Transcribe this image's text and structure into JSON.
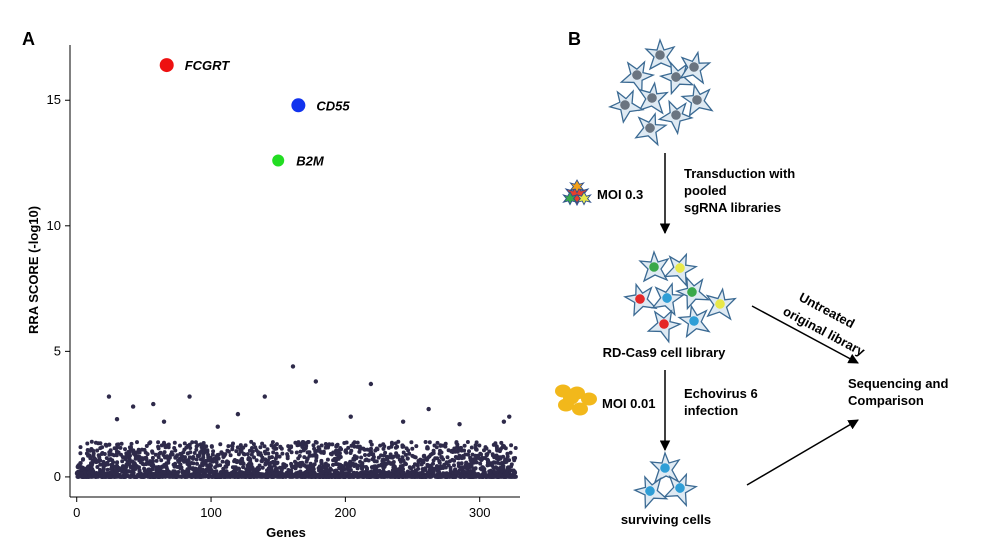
{
  "panel_a": {
    "letter": "A",
    "chart_data": {
      "type": "scatter",
      "xlabel": "Genes",
      "ylabel": "RRA SCORE (-log10)",
      "xlim": [
        -5,
        330
      ],
      "ylim": [
        -0.8,
        17.2
      ],
      "x_ticks": [
        "0",
        "100",
        "200",
        "300"
      ],
      "y_ticks": [
        "0",
        "5",
        "10",
        "15"
      ],
      "x_tick_values": [
        0,
        100,
        200,
        300
      ],
      "y_tick_values": [
        0,
        5,
        10,
        15
      ],
      "grid": false,
      "highlighted": [
        {
          "label": "FCGRT",
          "x": 67,
          "y": 16.4,
          "color": "#ee1111"
        },
        {
          "label": "CD55",
          "x": 165,
          "y": 14.8,
          "color": "#1133ee"
        },
        {
          "label": "B2M",
          "x": 150,
          "y": 12.6,
          "color": "#22dd22"
        }
      ],
      "outliers": [
        {
          "x": 24,
          "y": 3.2
        },
        {
          "x": 42,
          "y": 2.8
        },
        {
          "x": 57,
          "y": 2.9
        },
        {
          "x": 84,
          "y": 3.2
        },
        {
          "x": 120,
          "y": 2.5
        },
        {
          "x": 140,
          "y": 3.2
        },
        {
          "x": 161,
          "y": 4.4
        },
        {
          "x": 178,
          "y": 3.8
        },
        {
          "x": 204,
          "y": 2.4
        },
        {
          "x": 219,
          "y": 3.7
        },
        {
          "x": 262,
          "y": 2.7
        },
        {
          "x": 318,
          "y": 2.2
        },
        {
          "x": 322,
          "y": 2.4
        },
        {
          "x": 65,
          "y": 2.2
        },
        {
          "x": 243,
          "y": 2.2
        },
        {
          "x": 105,
          "y": 2.0
        },
        {
          "x": 285,
          "y": 2.1
        },
        {
          "x": 30,
          "y": 2.3
        }
      ],
      "background_points": {
        "x_range": [
          0,
          327
        ],
        "count": 2600,
        "typical_max": 1.4,
        "color": "#2e2a4a"
      }
    }
  },
  "panel_b": {
    "letter": "B",
    "step1_label": [
      "Transduction with",
      "pooled",
      "sgRNA libraries"
    ],
    "moi1": "MOI 0.3",
    "library_label": "RD-Cas9 cell library",
    "untreated_label": [
      "Untreated",
      "original library"
    ],
    "sequencing_label": [
      "Sequencing and",
      "Comparison"
    ],
    "moi2": "MOI 0.01",
    "step2_label": [
      "Echovirus 6",
      "infection"
    ],
    "surviving_label": "surviving cells",
    "colors": {
      "cell_fill": "#dfeaf3",
      "cell_stroke": "#3b6a93",
      "nucleus_gray": "#6a7480",
      "nucleus_green": "#3aa84a",
      "nucleus_yellow": "#e8e84a",
      "nucleus_red": "#e52828",
      "nucleus_blue": "#2f9ed6",
      "virus_orange": "#f2b81b"
    }
  }
}
